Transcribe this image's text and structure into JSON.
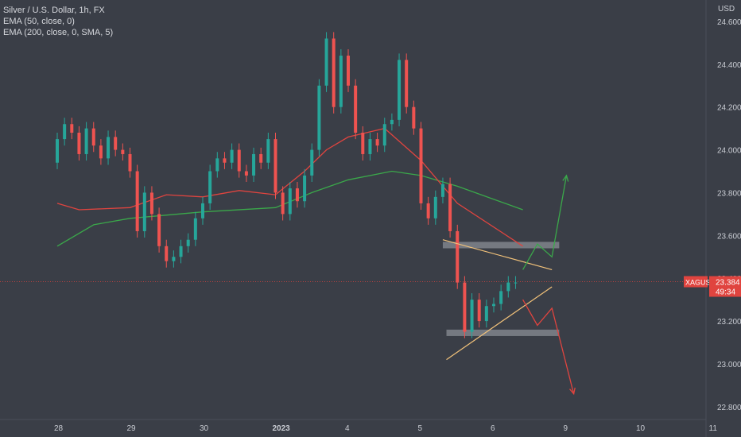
{
  "header": {
    "title": "Silver / U.S. Dollar, 1h, FX",
    "indicators": [
      "EMA (50, close, 0)",
      "EMA (200, close, 0, SMA, 5)"
    ]
  },
  "chart_data": {
    "type": "candlestick",
    "ylim": [
      22.74,
      24.7
    ],
    "y_unit": "USD",
    "y_ticks": [
      "24.600",
      "24.400",
      "24.200",
      "24.000",
      "23.800",
      "23.600",
      "23.400",
      "23.200",
      "23.000",
      "22.800"
    ],
    "x_ticks": [
      "28",
      "29",
      "30",
      "2023",
      "4",
      "5",
      "6",
      "9",
      "10",
      "11"
    ],
    "symbol_label": "XAGUSD",
    "last_price": "23.384",
    "countdown": "49:34",
    "colors": {
      "up": "#26a69a",
      "down": "#ef5350",
      "background": "#3a3e47",
      "ema50": "#e0443f",
      "ema200": "#3aa84a"
    },
    "ema50": [
      [
        0,
        23.75
      ],
      [
        0.3,
        23.72
      ],
      [
        1,
        23.73
      ],
      [
        1.5,
        23.79
      ],
      [
        2,
        23.78
      ],
      [
        2.5,
        23.81
      ],
      [
        3,
        23.79
      ],
      [
        3.4,
        23.9
      ],
      [
        3.7,
        24.0
      ],
      [
        4,
        24.06
      ],
      [
        4.5,
        24.1
      ],
      [
        5,
        23.95
      ],
      [
        5.5,
        23.75
      ],
      [
        6.4,
        23.55
      ]
    ],
    "ema200": [
      [
        0,
        23.55
      ],
      [
        0.5,
        23.65
      ],
      [
        1,
        23.68
      ],
      [
        2,
        23.71
      ],
      [
        3,
        23.73
      ],
      [
        3.5,
        23.8
      ],
      [
        4,
        23.86
      ],
      [
        4.6,
        23.9
      ],
      [
        5,
        23.88
      ],
      [
        5.5,
        23.83
      ],
      [
        6.4,
        23.72
      ]
    ],
    "candles": [
      [
        0,
        23.94,
        24.05
      ],
      [
        0.1,
        24.05,
        24.12
      ],
      [
        0.2,
        24.12,
        24.08
      ],
      [
        0.3,
        24.08,
        23.98
      ],
      [
        0.4,
        23.98,
        24.1
      ],
      [
        0.5,
        24.1,
        24.02
      ],
      [
        0.6,
        24.02,
        23.96
      ],
      [
        0.7,
        23.96,
        24.06
      ],
      [
        0.8,
        24.06,
        24.0
      ],
      [
        0.9,
        24.0,
        23.98
      ],
      [
        1.0,
        23.98,
        23.9
      ],
      [
        1.1,
        23.9,
        23.62
      ],
      [
        1.2,
        23.62,
        23.8
      ],
      [
        1.3,
        23.8,
        23.7
      ],
      [
        1.4,
        23.7,
        23.55
      ],
      [
        1.5,
        23.55,
        23.48
      ],
      [
        1.6,
        23.48,
        23.5
      ],
      [
        1.7,
        23.5,
        23.55
      ],
      [
        1.8,
        23.55,
        23.58
      ],
      [
        1.9,
        23.58,
        23.68
      ],
      [
        2.0,
        23.68,
        23.75
      ],
      [
        2.1,
        23.75,
        23.9
      ],
      [
        2.2,
        23.9,
        23.96
      ],
      [
        2.3,
        23.96,
        23.94
      ],
      [
        2.4,
        23.94,
        24.0
      ],
      [
        2.5,
        24.0,
        23.9
      ],
      [
        2.6,
        23.9,
        23.88
      ],
      [
        2.7,
        23.88,
        23.98
      ],
      [
        2.8,
        23.98,
        23.94
      ],
      [
        2.9,
        23.94,
        24.05
      ],
      [
        3.0,
        24.05,
        23.8
      ],
      [
        3.1,
        23.8,
        23.7
      ],
      [
        3.2,
        23.7,
        23.82
      ],
      [
        3.3,
        23.82,
        23.76
      ],
      [
        3.4,
        23.76,
        23.88
      ],
      [
        3.5,
        23.88,
        24.0
      ],
      [
        3.6,
        24.0,
        24.3
      ],
      [
        3.7,
        24.3,
        24.52
      ],
      [
        3.8,
        24.52,
        24.2
      ],
      [
        3.9,
        24.2,
        24.44
      ],
      [
        4.0,
        24.44,
        24.3
      ],
      [
        4.1,
        24.3,
        24.08
      ],
      [
        4.2,
        24.08,
        23.98
      ],
      [
        4.3,
        23.98,
        24.05
      ],
      [
        4.4,
        24.05,
        24.02
      ],
      [
        4.5,
        24.02,
        24.12
      ],
      [
        4.6,
        24.12,
        24.14
      ],
      [
        4.7,
        24.14,
        24.42
      ],
      [
        4.8,
        24.42,
        24.2
      ],
      [
        4.9,
        24.2,
        24.1
      ],
      [
        5.0,
        24.1,
        23.75
      ],
      [
        5.1,
        23.75,
        23.68
      ],
      [
        5.2,
        23.68,
        23.78
      ],
      [
        5.3,
        23.78,
        23.84
      ],
      [
        5.4,
        23.84,
        23.62
      ],
      [
        5.5,
        23.62,
        23.38
      ],
      [
        5.6,
        23.38,
        23.15
      ],
      [
        5.7,
        23.15,
        23.3
      ],
      [
        5.8,
        23.3,
        23.2
      ],
      [
        5.9,
        23.2,
        23.27
      ],
      [
        6.0,
        23.27,
        23.28
      ],
      [
        6.1,
        23.28,
        23.34
      ],
      [
        6.2,
        23.34,
        23.38
      ],
      [
        6.3,
        23.38,
        23.38
      ]
    ],
    "zones": [
      {
        "price_low": 23.54,
        "price_high": 23.57,
        "t_start": 5.3,
        "t_end": 6.9
      },
      {
        "price_low": 23.13,
        "price_high": 23.16,
        "t_start": 5.35,
        "t_end": 6.9
      }
    ],
    "trendlines": [
      {
        "from": [
          5.3,
          23.58
        ],
        "to": [
          6.8,
          23.44
        ],
        "color": "#f2c27a"
      },
      {
        "from": [
          5.35,
          23.02
        ],
        "to": [
          6.8,
          23.36
        ],
        "color": "#f2c27a"
      }
    ],
    "scenario_up": {
      "color": "#3aa84a",
      "points": [
        [
          6.4,
          23.44
        ],
        [
          6.6,
          23.56
        ],
        [
          6.8,
          23.5
        ],
        [
          7.0,
          23.88
        ]
      ]
    },
    "scenario_down": {
      "color": "#e0443f",
      "points": [
        [
          6.4,
          23.3
        ],
        [
          6.6,
          23.18
        ],
        [
          6.8,
          23.26
        ],
        [
          7.1,
          22.86
        ]
      ]
    }
  }
}
